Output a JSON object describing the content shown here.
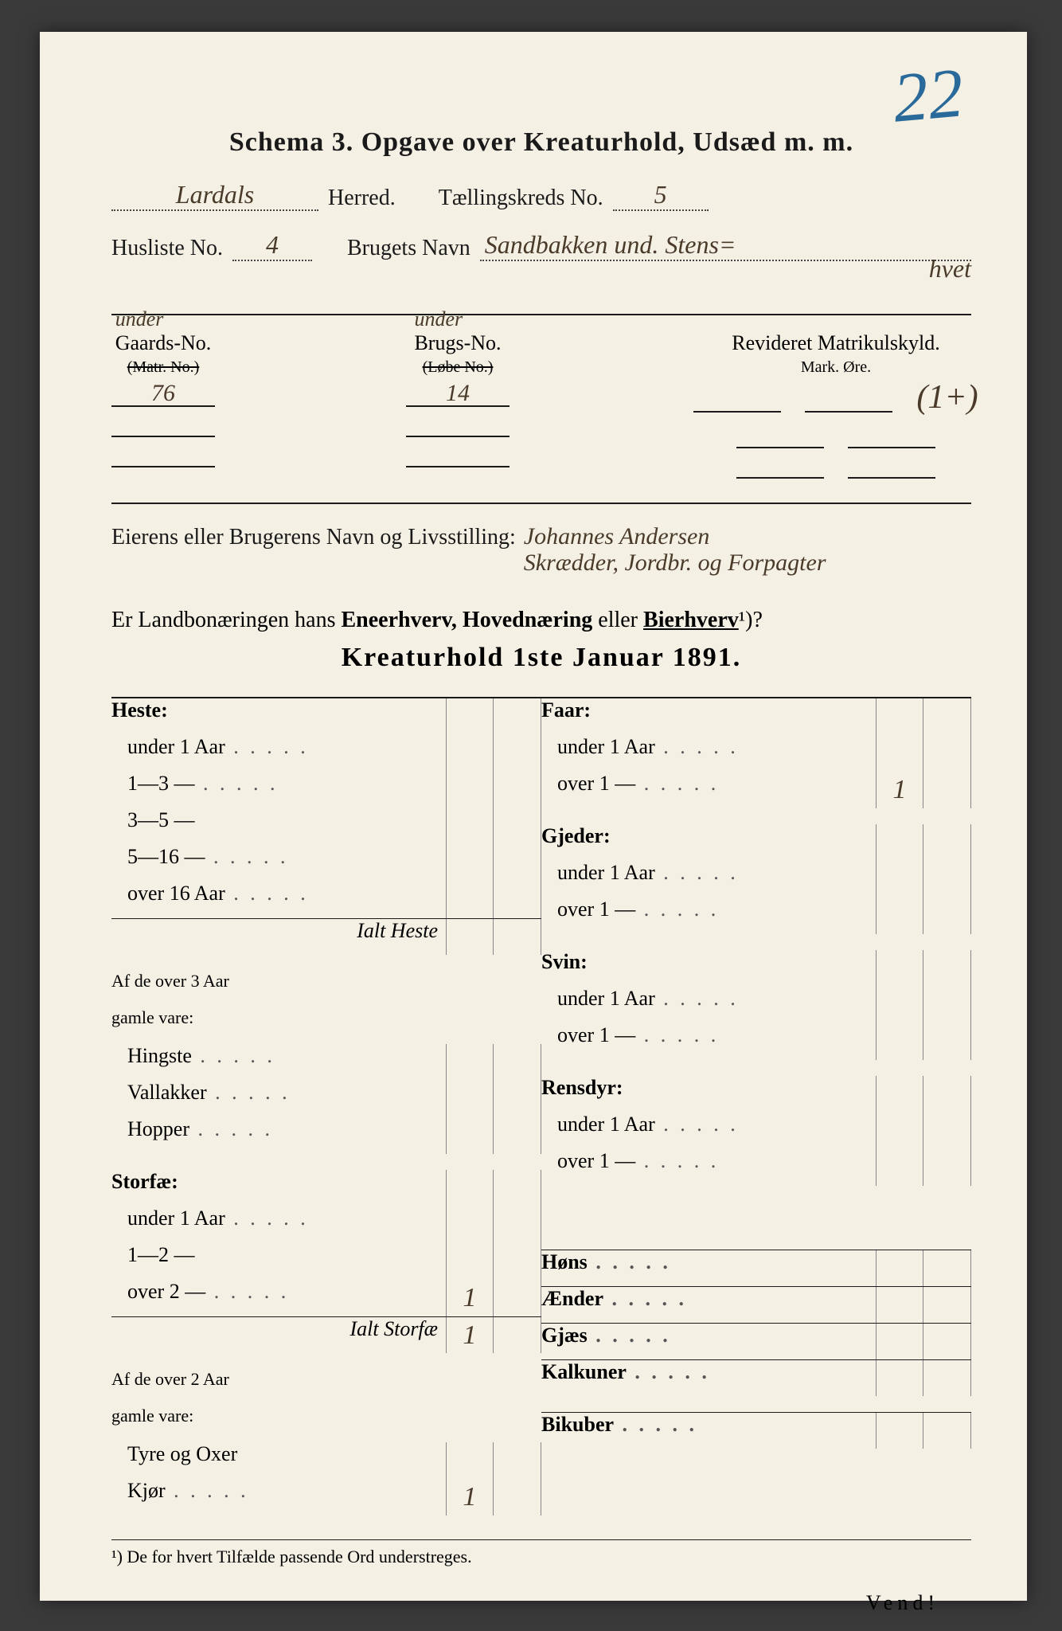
{
  "page_number_handwritten": "22",
  "title": "Schema 3.   Opgave over Kreaturhold, Udsæd m. m.",
  "header": {
    "herred_value": "Lardals",
    "herred_label": "Herred.",
    "kreds_label": "Tællingskreds No.",
    "kreds_value": "5",
    "husliste_label": "Husliste No.",
    "husliste_value": "4",
    "brugets_label": "Brugets Navn",
    "brugets_value": "Sandbakken und. Stens=",
    "brugets_value2": "hvet"
  },
  "ids": {
    "under_label": "under",
    "gaards_label": "Gaards-No.",
    "gaards_sub": "(Matr. No.)",
    "gaards_val": "76",
    "brugs_label": "Brugs-No.",
    "brugs_sub": "(Løbe No.)",
    "brugs_val": "14",
    "matrik_label": "Revideret Matrikulskyld.",
    "matrik_sub": "Mark.    Øre.",
    "matrik_val": "(1+)"
  },
  "owner": {
    "label": "Eierens eller Brugerens Navn og Livsstilling:",
    "value_line1": "Johannes Andersen",
    "value_line2": "Skrædder, Jordbr. og Forpagter"
  },
  "question": {
    "prefix": "Er Landbonæringen hans ",
    "a": "Eneerhverv, Hovednæring",
    "mid": " eller ",
    "b": "Bierhverv",
    "suffix": "¹)?"
  },
  "section_title": "Kreaturhold 1ste Januar 1891.",
  "left_col": [
    {
      "label": "Heste:",
      "cat": true
    },
    {
      "label": "under 1 Aar",
      "dots": true
    },
    {
      "label": "1—3    —",
      "dots": true
    },
    {
      "label": "3—5    —"
    },
    {
      "label": "5—16  —",
      "dots": true
    },
    {
      "label": "over 16 Aar",
      "dots": true
    },
    {
      "label": "Ialt Heste",
      "total": true,
      "sum": true
    },
    {
      "label": "Af de over 3 Aar",
      "note": true,
      "spacer_before": true
    },
    {
      "label": "gamle vare:",
      "note": true
    },
    {
      "label": "Hingste",
      "dots": true
    },
    {
      "label": "Vallakker",
      "dots": true
    },
    {
      "label": "Hopper",
      "dots": true
    },
    {
      "label": "Storfæ:",
      "cat": true,
      "spacer_before": true
    },
    {
      "label": "under 1 Aar",
      "dots": true
    },
    {
      "label": "1—2    —"
    },
    {
      "label": "over 2   —",
      "dots": true,
      "val": "1"
    },
    {
      "label": "Ialt Storfæ",
      "total": true,
      "sum": true,
      "val": "1"
    },
    {
      "label": "Af de over 2 Aar",
      "note": true,
      "spacer_before": true
    },
    {
      "label": "gamle vare:",
      "note": true
    },
    {
      "label": "Tyre og Oxer"
    },
    {
      "label": "Kjør",
      "dots": true,
      "val": "1"
    }
  ],
  "right_col": [
    {
      "label": "Faar:",
      "cat": true
    },
    {
      "label": "under 1 Aar",
      "dots": true
    },
    {
      "label": "over 1    —",
      "dots": true,
      "val": "1"
    },
    {
      "label": "Gjeder:",
      "cat": true,
      "spacer_before": true
    },
    {
      "label": "under 1 Aar",
      "dots": true
    },
    {
      "label": "over 1    —",
      "dots": true
    },
    {
      "label": "Svin:",
      "cat": true,
      "spacer_before": true
    },
    {
      "label": "under 1 Aar",
      "dots": true
    },
    {
      "label": "over 1    —",
      "dots": true
    },
    {
      "label": "Rensdyr:",
      "cat": true,
      "spacer_before": true
    },
    {
      "label": "under 1 Aar",
      "dots": true
    },
    {
      "label": "over 1    —",
      "dots": true
    },
    {
      "label": "Høns",
      "cat": true,
      "dots": true,
      "sum": true,
      "spacer_before": true,
      "big_spacer": true
    },
    {
      "label": "Ænder",
      "cat": true,
      "dots": true,
      "sum": true
    },
    {
      "label": "Gjæs",
      "cat": true,
      "dots": true,
      "sum": true
    },
    {
      "label": "Kalkuner",
      "cat": true,
      "dots": true,
      "sum": true
    },
    {
      "label": "Bikuber",
      "cat": true,
      "dots": true,
      "sum": true,
      "spacer_before": true
    }
  ],
  "footnote": "¹) De for hvert Tilfælde passende Ord understreges.",
  "vend": "Vend!"
}
